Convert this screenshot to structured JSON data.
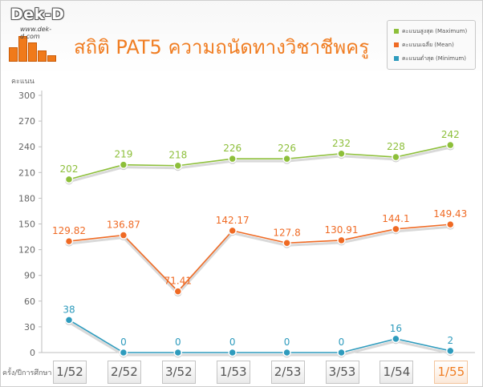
{
  "header": {
    "logo_text": "Dek-D",
    "logo_url": "www.dek-d.com",
    "title": "สถิติ PAT5 ความถนัดทางวิชาชีพครู"
  },
  "chart_data": {
    "type": "line",
    "ylabel": "คะแนน",
    "xlabel": "ครั้ง/ปีการศึกษา",
    "ylim": [
      0,
      300
    ],
    "yticks": [
      0,
      30,
      60,
      90,
      120,
      150,
      180,
      210,
      240,
      270,
      300
    ],
    "grid": false,
    "legend_position": "top-right",
    "categories": [
      "1/52",
      "2/52",
      "3/52",
      "1/53",
      "2/53",
      "3/53",
      "1/54",
      "1/55"
    ],
    "highlight_category": "1/55",
    "series": [
      {
        "name": "คะแนนสูงสุด (Maximum)",
        "color": "#8dbf3a",
        "values": [
          202,
          219,
          218,
          226,
          226,
          232,
          228,
          242
        ],
        "labels": [
          "202",
          "219",
          "218",
          "226",
          "226",
          "232",
          "228",
          "242"
        ]
      },
      {
        "name": "คะแนนเฉลี่ย (Mean)",
        "color": "#ef6a24",
        "values": [
          129.82,
          136.87,
          71.41,
          142.17,
          127.8,
          130.91,
          144.1,
          149.43
        ],
        "labels": [
          "129.82",
          "136.87",
          "71.41",
          "142.17",
          "127.8",
          "130.91",
          "144.1",
          "149.43"
        ]
      },
      {
        "name": "คะแนนต่ำสุด (Minimum)",
        "color": "#2e9bbd",
        "values": [
          38,
          0,
          0,
          0,
          0,
          0,
          16,
          2
        ],
        "labels": [
          "38",
          "0",
          "0",
          "0",
          "0",
          "0",
          "16",
          "2"
        ]
      }
    ]
  }
}
